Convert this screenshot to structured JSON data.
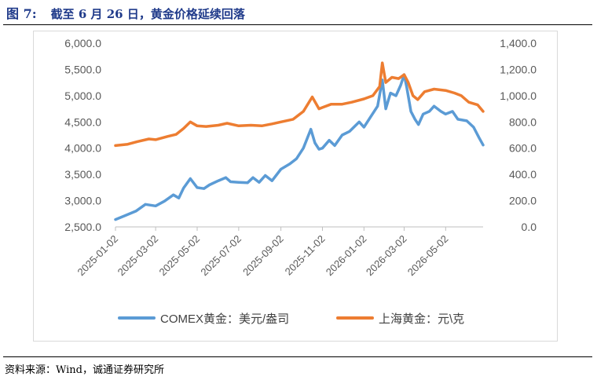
{
  "header": {
    "figure_label": "图 7:",
    "title": "截至 6 月 26 日，黄金价格延续回落"
  },
  "footer": {
    "source": "资料来源：Wind，诚通证券研究所"
  },
  "chart_data": {
    "type": "line",
    "title": "截至 6 月 26 日，黄金价格延续回落",
    "x_tick_labels": [
      "2025-01-02",
      "2025-03-02",
      "2025-05-02",
      "2025-07-02",
      "2025-09-02",
      "2025-11-02",
      "2026-01-02",
      "2026-03-02",
      "2026-05-02"
    ],
    "x_range": [
      "2025-01-02",
      "2026-06-26"
    ],
    "left_axis": {
      "ylim": [
        2500,
        6000
      ],
      "ticks": [
        "2,500.0",
        "3,000.0",
        "3,500.0",
        "4,000.0",
        "4,500.0",
        "5,000.0",
        "5,500.0",
        "6,000.0"
      ]
    },
    "right_axis": {
      "ylim": [
        0,
        1400
      ],
      "ticks": [
        "0.0",
        "200.0",
        "400.0",
        "600.0",
        "800.0",
        "1,000.0",
        "1,200.0",
        "1,400.0"
      ]
    },
    "grid": false,
    "legend_position": "bottom",
    "series": [
      {
        "name": "COMEX黄金：美元/盎司",
        "axis": "left",
        "color": "#5b9bd5",
        "points": [
          [
            "2025-01-02",
            2640
          ],
          [
            "2025-01-15",
            2710
          ],
          [
            "2025-02-01",
            2800
          ],
          [
            "2025-02-15",
            2930
          ],
          [
            "2025-03-02",
            2900
          ],
          [
            "2025-03-15",
            2990
          ],
          [
            "2025-03-28",
            3110
          ],
          [
            "2025-04-05",
            3050
          ],
          [
            "2025-04-12",
            3240
          ],
          [
            "2025-04-22",
            3420
          ],
          [
            "2025-05-02",
            3250
          ],
          [
            "2025-05-12",
            3230
          ],
          [
            "2025-05-20",
            3300
          ],
          [
            "2025-06-02",
            3380
          ],
          [
            "2025-06-13",
            3440
          ],
          [
            "2025-06-20",
            3360
          ],
          [
            "2025-07-02",
            3350
          ],
          [
            "2025-07-15",
            3340
          ],
          [
            "2025-07-23",
            3440
          ],
          [
            "2025-08-01",
            3350
          ],
          [
            "2025-08-10",
            3480
          ],
          [
            "2025-08-20",
            3380
          ],
          [
            "2025-09-02",
            3600
          ],
          [
            "2025-09-15",
            3700
          ],
          [
            "2025-09-25",
            3800
          ],
          [
            "2025-10-05",
            4000
          ],
          [
            "2025-10-16",
            4360
          ],
          [
            "2025-10-22",
            4100
          ],
          [
            "2025-10-28",
            3980
          ],
          [
            "2025-11-02",
            4000
          ],
          [
            "2025-11-12",
            4150
          ],
          [
            "2025-11-20",
            4050
          ],
          [
            "2025-12-01",
            4250
          ],
          [
            "2025-12-12",
            4320
          ],
          [
            "2025-12-26",
            4500
          ],
          [
            "2026-01-02",
            4400
          ],
          [
            "2026-01-12",
            4600
          ],
          [
            "2026-01-22",
            4800
          ],
          [
            "2026-01-29",
            5300
          ],
          [
            "2026-02-03",
            4750
          ],
          [
            "2026-02-10",
            5050
          ],
          [
            "2026-02-18",
            5000
          ],
          [
            "2026-02-25",
            5200
          ],
          [
            "2026-03-02",
            5400
          ],
          [
            "2026-03-06",
            5150
          ],
          [
            "2026-03-12",
            4700
          ],
          [
            "2026-03-18",
            4550
          ],
          [
            "2026-03-23",
            4450
          ],
          [
            "2026-03-30",
            4650
          ],
          [
            "2026-04-08",
            4700
          ],
          [
            "2026-04-15",
            4800
          ],
          [
            "2026-04-25",
            4700
          ],
          [
            "2026-05-02",
            4650
          ],
          [
            "2026-05-12",
            4700
          ],
          [
            "2026-05-20",
            4550
          ],
          [
            "2026-06-02",
            4520
          ],
          [
            "2026-06-12",
            4400
          ],
          [
            "2026-06-20",
            4200
          ],
          [
            "2026-06-26",
            4060
          ]
        ]
      },
      {
        "name": "上海黄金：元\\克",
        "axis": "right",
        "color": "#ed7d31",
        "points": [
          [
            "2025-01-02",
            620
          ],
          [
            "2025-01-20",
            630
          ],
          [
            "2025-02-03",
            650
          ],
          [
            "2025-02-20",
            670
          ],
          [
            "2025-03-02",
            665
          ],
          [
            "2025-03-20",
            690
          ],
          [
            "2025-04-01",
            705
          ],
          [
            "2025-04-12",
            750
          ],
          [
            "2025-04-22",
            800
          ],
          [
            "2025-05-02",
            770
          ],
          [
            "2025-05-15",
            765
          ],
          [
            "2025-06-02",
            775
          ],
          [
            "2025-06-15",
            790
          ],
          [
            "2025-07-02",
            770
          ],
          [
            "2025-07-20",
            775
          ],
          [
            "2025-08-05",
            770
          ],
          [
            "2025-08-20",
            785
          ],
          [
            "2025-09-02",
            800
          ],
          [
            "2025-09-20",
            820
          ],
          [
            "2025-10-05",
            880
          ],
          [
            "2025-10-18",
            990
          ],
          [
            "2025-10-28",
            900
          ],
          [
            "2025-11-02",
            910
          ],
          [
            "2025-11-15",
            935
          ],
          [
            "2025-12-01",
            935
          ],
          [
            "2025-12-15",
            950
          ],
          [
            "2026-01-02",
            975
          ],
          [
            "2026-01-15",
            1000
          ],
          [
            "2026-01-25",
            1070
          ],
          [
            "2026-01-29",
            1250
          ],
          [
            "2026-02-03",
            1100
          ],
          [
            "2026-02-12",
            1140
          ],
          [
            "2026-02-22",
            1130
          ],
          [
            "2026-03-02",
            1160
          ],
          [
            "2026-03-08",
            1100
          ],
          [
            "2026-03-15",
            1000
          ],
          [
            "2026-03-22",
            970
          ],
          [
            "2026-04-01",
            1030
          ],
          [
            "2026-04-15",
            1050
          ],
          [
            "2026-05-02",
            1040
          ],
          [
            "2026-05-15",
            1020
          ],
          [
            "2026-05-25",
            1000
          ],
          [
            "2026-06-05",
            950
          ],
          [
            "2026-06-18",
            930
          ],
          [
            "2026-06-26",
            880
          ]
        ]
      }
    ]
  }
}
